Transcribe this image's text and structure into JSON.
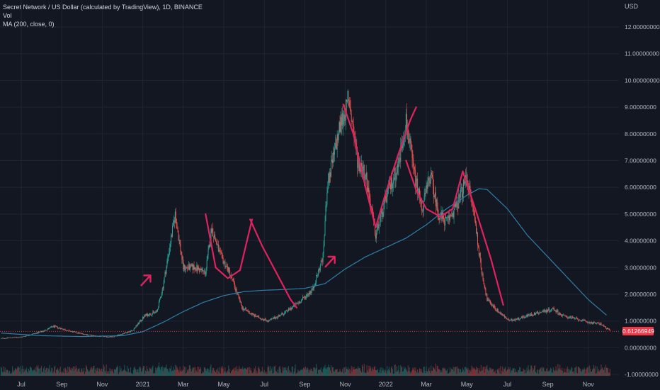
{
  "legend": {
    "symbol_line": "Secret Network / US Dollar (calculated by TradingView), 1D, BINANCE",
    "vol_label": "Vol",
    "ma_label": "MA (200, close, 0)"
  },
  "currency_label": "USD",
  "last_price_label": "0.61266949",
  "colors": {
    "background": "#131722",
    "up": "#26a69a",
    "down": "#ef5350",
    "ma": "#2f7fa8",
    "annotation": "#e0235f",
    "last_price": "#f23645",
    "grid": "#1f2430"
  },
  "chart_data": {
    "type": "candlestick",
    "title": "Secret Network / US Dollar (calculated by TradingView), 1D, BINANCE",
    "ylim": [
      -1.1,
      12.8
    ],
    "y_ticks": [
      {
        "value": 12,
        "label": "12.00000000"
      },
      {
        "value": 11,
        "label": "11.00000000"
      },
      {
        "value": 10,
        "label": "10.00000000"
      },
      {
        "value": 9,
        "label": "9.00000000"
      },
      {
        "value": 8,
        "label": "8.00000000"
      },
      {
        "value": 7,
        "label": "7.00000000"
      },
      {
        "value": 6,
        "label": "6.00000000"
      },
      {
        "value": 5,
        "label": "5.00000000"
      },
      {
        "value": 4,
        "label": "4.00000000"
      },
      {
        "value": 3,
        "label": "3.00000000"
      },
      {
        "value": 2,
        "label": "2.00000000"
      },
      {
        "value": 1,
        "label": "1.00000000"
      },
      {
        "value": 0,
        "label": "0.00000000"
      },
      {
        "value": -1,
        "label": "-1.00000000"
      }
    ],
    "x_ticks": [
      {
        "label": "Jul",
        "month": 0
      },
      {
        "label": "Sep",
        "month": 2
      },
      {
        "label": "Nov",
        "month": 4
      },
      {
        "label": "2021",
        "month": 6
      },
      {
        "label": "Mar",
        "month": 8
      },
      {
        "label": "May",
        "month": 10
      },
      {
        "label": "Jul",
        "month": 12
      },
      {
        "label": "Sep",
        "month": 14
      },
      {
        "label": "Nov",
        "month": 16
      },
      {
        "label": "2022",
        "month": 18
      },
      {
        "label": "Mar",
        "month": 20
      },
      {
        "label": "May",
        "month": 22
      },
      {
        "label": "Jul",
        "month": 24
      },
      {
        "label": "Sep",
        "month": 26
      },
      {
        "label": "Nov",
        "month": 28
      }
    ],
    "price_anchors": [
      {
        "month": -1.0,
        "close": 0.35
      },
      {
        "month": 0.0,
        "close": 0.4
      },
      {
        "month": 1.0,
        "close": 0.6
      },
      {
        "month": 1.6,
        "close": 0.8
      },
      {
        "month": 2.5,
        "close": 0.6
      },
      {
        "month": 3.5,
        "close": 0.45
      },
      {
        "month": 4.5,
        "close": 0.4
      },
      {
        "month": 5.5,
        "close": 0.65
      },
      {
        "month": 6.1,
        "close": 1.2
      },
      {
        "month": 6.7,
        "close": 1.35
      },
      {
        "month": 7.0,
        "close": 2.3
      },
      {
        "month": 7.6,
        "close": 5.0
      },
      {
        "month": 8.0,
        "close": 3.0
      },
      {
        "month": 8.6,
        "close": 3.0
      },
      {
        "month": 9.1,
        "close": 2.8
      },
      {
        "month": 9.4,
        "close": 4.5
      },
      {
        "month": 9.8,
        "close": 3.5
      },
      {
        "month": 10.3,
        "close": 2.8
      },
      {
        "month": 10.9,
        "close": 1.5
      },
      {
        "month": 11.5,
        "close": 1.2
      },
      {
        "month": 12.2,
        "close": 1.0
      },
      {
        "month": 13.0,
        "close": 1.3
      },
      {
        "month": 13.8,
        "close": 1.75
      },
      {
        "month": 14.4,
        "close": 2.2
      },
      {
        "month": 14.9,
        "close": 3.4
      },
      {
        "month": 15.1,
        "close": 6.0
      },
      {
        "month": 15.8,
        "close": 8.5
      },
      {
        "month": 16.2,
        "close": 9.2
      },
      {
        "month": 16.6,
        "close": 7.0
      },
      {
        "month": 17.0,
        "close": 6.5
      },
      {
        "month": 17.5,
        "close": 4.2
      },
      {
        "month": 18.1,
        "close": 5.8
      },
      {
        "month": 18.6,
        "close": 6.8
      },
      {
        "month": 19.0,
        "close": 8.5
      },
      {
        "month": 19.4,
        "close": 6.5
      },
      {
        "month": 19.8,
        "close": 5.2
      },
      {
        "month": 20.2,
        "close": 6.5
      },
      {
        "month": 20.6,
        "close": 5.0
      },
      {
        "month": 21.0,
        "close": 4.7
      },
      {
        "month": 21.5,
        "close": 5.3
      },
      {
        "month": 22.0,
        "close": 6.4
      },
      {
        "month": 22.4,
        "close": 4.8
      },
      {
        "month": 22.7,
        "close": 3.0
      },
      {
        "month": 23.0,
        "close": 1.8
      },
      {
        "month": 23.5,
        "close": 1.4
      },
      {
        "month": 24.1,
        "close": 1.0
      },
      {
        "month": 25.0,
        "close": 1.2
      },
      {
        "month": 25.7,
        "close": 1.35
      },
      {
        "month": 26.3,
        "close": 1.45
      },
      {
        "month": 26.7,
        "close": 1.2
      },
      {
        "month": 27.3,
        "close": 1.1
      },
      {
        "month": 28.0,
        "close": 0.95
      },
      {
        "month": 28.6,
        "close": 0.9
      },
      {
        "month": 29.1,
        "close": 0.62
      }
    ],
    "ma200_anchors": [
      {
        "month": -1.0,
        "close": 0.55
      },
      {
        "month": 1.0,
        "close": 0.45
      },
      {
        "month": 3.0,
        "close": 0.42
      },
      {
        "month": 5.0,
        "close": 0.45
      },
      {
        "month": 6.0,
        "close": 0.6
      },
      {
        "month": 7.0,
        "close": 0.95
      },
      {
        "month": 8.0,
        "close": 1.35
      },
      {
        "month": 9.0,
        "close": 1.7
      },
      {
        "month": 10.0,
        "close": 1.95
      },
      {
        "month": 11.0,
        "close": 2.1
      },
      {
        "month": 12.0,
        "close": 2.15
      },
      {
        "month": 13.0,
        "close": 2.18
      },
      {
        "month": 14.0,
        "close": 2.22
      },
      {
        "month": 15.0,
        "close": 2.4
      },
      {
        "month": 16.0,
        "close": 2.95
      },
      {
        "month": 17.0,
        "close": 3.4
      },
      {
        "month": 18.0,
        "close": 3.75
      },
      {
        "month": 19.0,
        "close": 4.1
      },
      {
        "month": 20.0,
        "close": 4.6
      },
      {
        "month": 21.0,
        "close": 5.2
      },
      {
        "month": 22.0,
        "close": 5.7
      },
      {
        "month": 22.6,
        "close": 5.95
      },
      {
        "month": 23.0,
        "close": 5.92
      },
      {
        "month": 24.0,
        "close": 5.2
      },
      {
        "month": 25.0,
        "close": 4.2
      },
      {
        "month": 26.0,
        "close": 3.4
      },
      {
        "month": 27.0,
        "close": 2.6
      },
      {
        "month": 28.0,
        "close": 1.8
      },
      {
        "month": 29.0,
        "close": 1.15
      }
    ],
    "last_price": 0.61266949,
    "series": [
      {
        "name": "Vol"
      },
      {
        "name": "MA (200, close, 0)"
      }
    ],
    "annotations": [
      {
        "type": "arrow",
        "at_month": 6.1,
        "value": 2.6
      },
      {
        "type": "arrow",
        "at_month": 15.2,
        "value": 3.3
      },
      {
        "type": "curve",
        "points": [
          [
            9.1,
            5.0
          ],
          [
            9.6,
            3.0
          ],
          [
            10.2,
            2.6
          ],
          [
            10.8,
            2.9
          ],
          [
            11.4,
            4.8
          ]
        ]
      },
      {
        "type": "curve",
        "points": [
          [
            11.3,
            4.8
          ],
          [
            11.9,
            3.8
          ],
          [
            12.6,
            2.8
          ],
          [
            13.3,
            1.8
          ],
          [
            13.6,
            1.5
          ]
        ]
      },
      {
        "type": "curve",
        "points": [
          [
            15.9,
            9.1
          ],
          [
            16.4,
            8.0
          ],
          [
            17.0,
            6.0
          ],
          [
            17.5,
            4.5
          ],
          [
            18.0,
            5.8
          ],
          [
            18.6,
            7.2
          ],
          [
            19.2,
            8.5
          ],
          [
            19.5,
            9.0
          ]
        ]
      },
      {
        "type": "curve",
        "points": [
          [
            19.0,
            7.0
          ],
          [
            19.5,
            5.9
          ],
          [
            20.0,
            5.2
          ],
          [
            20.7,
            4.9
          ],
          [
            21.3,
            5.2
          ],
          [
            21.8,
            6.6
          ]
        ]
      },
      {
        "type": "curve",
        "points": [
          [
            21.8,
            6.6
          ],
          [
            22.5,
            5.0
          ],
          [
            23.2,
            3.3
          ],
          [
            23.8,
            1.6
          ]
        ]
      }
    ]
  }
}
